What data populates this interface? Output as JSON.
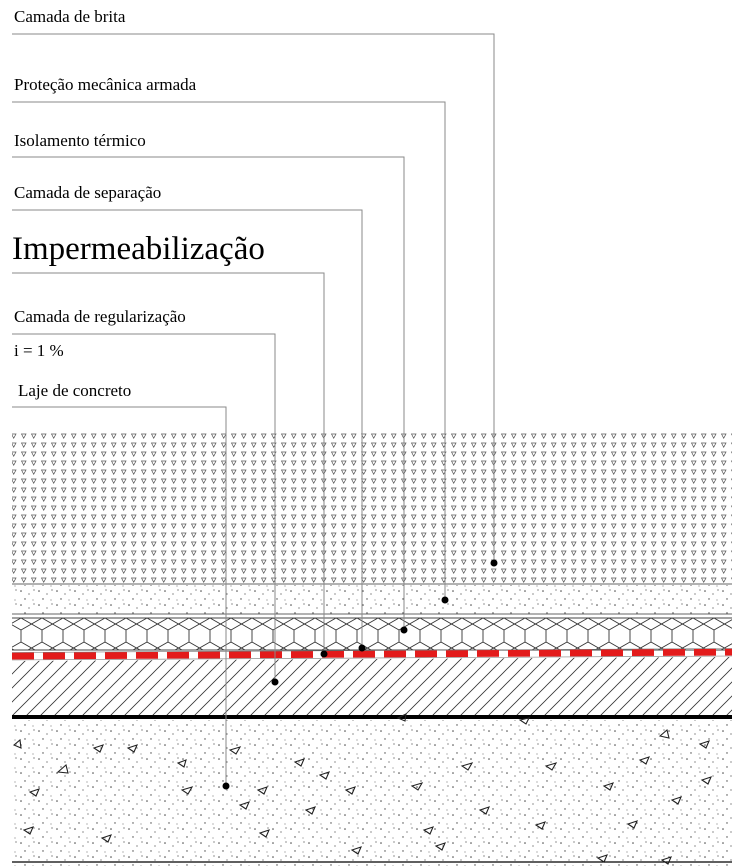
{
  "labels": {
    "gravel_layer": "Camada de brita",
    "mechanical_protection": "Proteção mecânica armada",
    "thermal_insulation": "Isolamento térmico",
    "separation_layer": "Camada de separação",
    "waterproofing": "Impermeabilização",
    "leveling_layer": "Camada de regularização",
    "slope": "i = 1 %",
    "concrete_slab": "Laje de concreto"
  },
  "colors": {
    "waterproofing_membrane": "#e31b1b",
    "leader_line": "#8a8a8a",
    "slab_top_line": "#000000"
  }
}
